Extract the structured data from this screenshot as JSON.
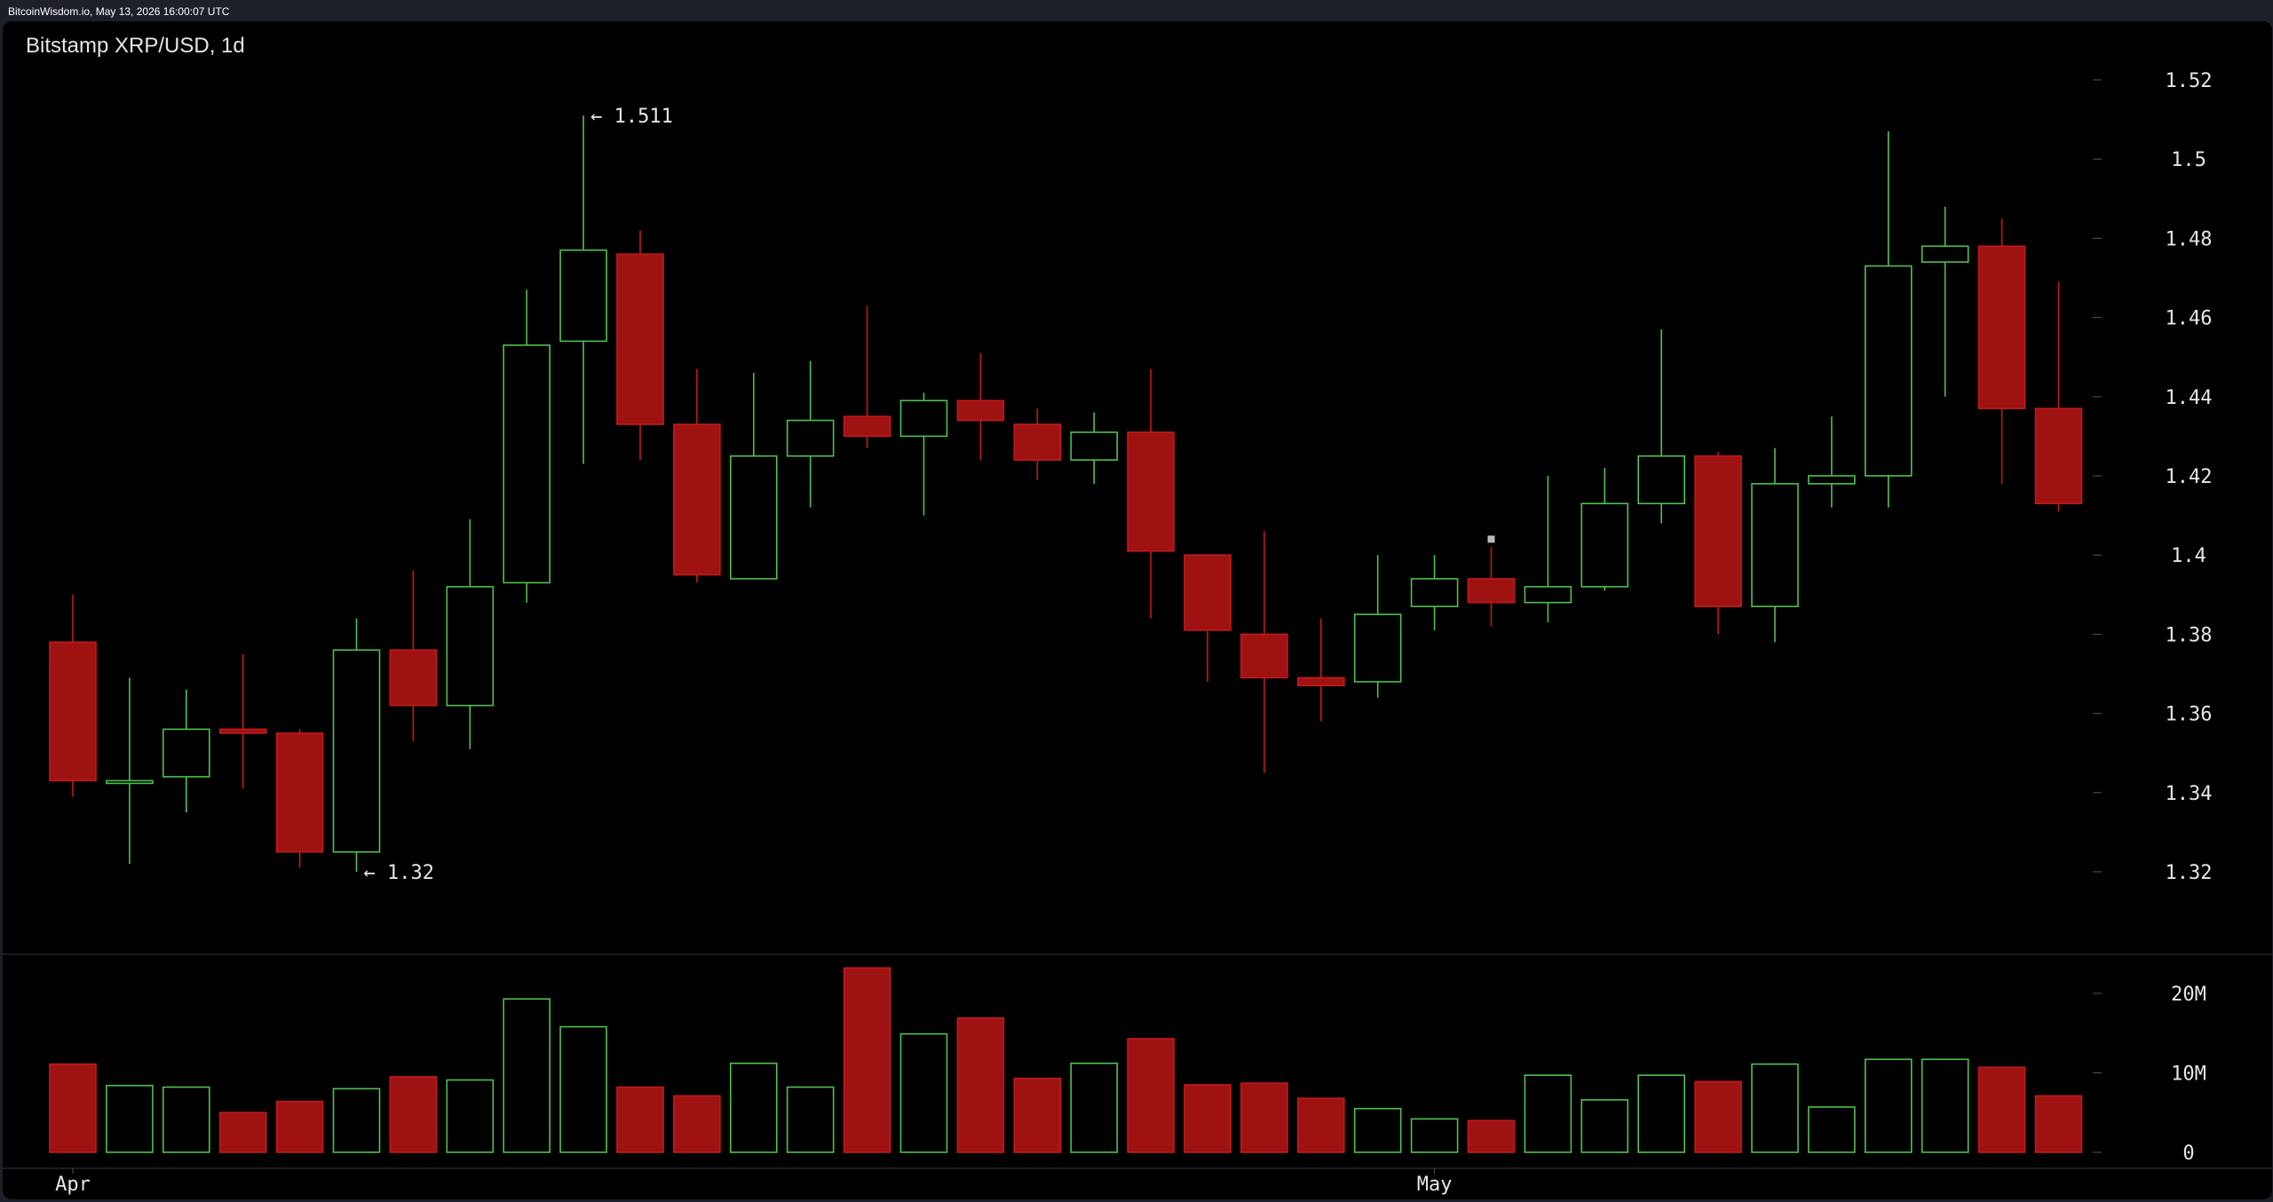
{
  "header": {
    "site_line": "BitcoinWisdom.io, May 13, 2026 16:00:07 UTC"
  },
  "chart_title": "Bitstamp XRP/USD, 1d",
  "colors": {
    "background": "#000000",
    "frame": "#1d2029",
    "up": "#4fc04f",
    "down": "#9e1212",
    "down_border": "#c21a1a",
    "text": "#e6e6e6",
    "axis_tick": "#555555",
    "separator": "#3a3a3a"
  },
  "chart_data": {
    "type": "candlestick",
    "title": "Bitstamp XRP/USD, 1d",
    "price_axis": {
      "ticks": [
        1.32,
        1.34,
        1.36,
        1.38,
        1.4,
        1.42,
        1.44,
        1.46,
        1.48,
        1.5,
        1.52
      ],
      "tick_labels": [
        "1.32",
        "1.34",
        "1.36",
        "1.38",
        "1.4",
        "1.42",
        "1.44",
        "1.46",
        "1.48",
        "1.5",
        "1.52"
      ],
      "position": "right"
    },
    "volume_axis": {
      "ticks": [
        0,
        10,
        20
      ],
      "tick_labels": [
        "0",
        "10M",
        "20M"
      ],
      "unit": "M",
      "position": "right"
    },
    "x_axis": {
      "labels": [
        {
          "text": "Apr",
          "index": 0
        },
        {
          "text": "May",
          "index": 24
        }
      ]
    },
    "annotations": [
      {
        "text": "← 1.511",
        "index": 9,
        "value": 1.511
      },
      {
        "text": "← 1.32",
        "index": 5,
        "value": 1.32
      }
    ],
    "marker": {
      "index": 25,
      "value": 1.404
    },
    "candles": [
      {
        "open": 1.378,
        "high": 1.39,
        "low": 1.339,
        "close": 1.343,
        "volume": 11.1
      },
      {
        "open": 1.343,
        "high": 1.369,
        "low": 1.322,
        "close": 1.343,
        "volume": 8.4
      },
      {
        "open": 1.344,
        "high": 1.366,
        "low": 1.335,
        "close": 1.356,
        "volume": 8.2
      },
      {
        "open": 1.356,
        "high": 1.375,
        "low": 1.341,
        "close": 1.355,
        "volume": 5.0
      },
      {
        "open": 1.355,
        "high": 1.356,
        "low": 1.321,
        "close": 1.325,
        "volume": 6.4
      },
      {
        "open": 1.325,
        "high": 1.384,
        "low": 1.32,
        "close": 1.376,
        "volume": 8.0
      },
      {
        "open": 1.376,
        "high": 1.396,
        "low": 1.353,
        "close": 1.362,
        "volume": 9.5
      },
      {
        "open": 1.362,
        "high": 1.409,
        "low": 1.351,
        "close": 1.392,
        "volume": 9.1
      },
      {
        "open": 1.393,
        "high": 1.467,
        "low": 1.388,
        "close": 1.453,
        "volume": 19.3
      },
      {
        "open": 1.454,
        "high": 1.511,
        "low": 1.423,
        "close": 1.477,
        "volume": 15.8
      },
      {
        "open": 1.476,
        "high": 1.482,
        "low": 1.424,
        "close": 1.433,
        "volume": 8.2
      },
      {
        "open": 1.433,
        "high": 1.447,
        "low": 1.393,
        "close": 1.395,
        "volume": 7.1
      },
      {
        "open": 1.394,
        "high": 1.446,
        "low": 1.394,
        "close": 1.425,
        "volume": 11.2
      },
      {
        "open": 1.425,
        "high": 1.449,
        "low": 1.412,
        "close": 1.434,
        "volume": 8.2
      },
      {
        "open": 1.435,
        "high": 1.463,
        "low": 1.427,
        "close": 1.43,
        "volume": 23.2
      },
      {
        "open": 1.43,
        "high": 1.441,
        "low": 1.41,
        "close": 1.439,
        "volume": 14.9
      },
      {
        "open": 1.439,
        "high": 1.451,
        "low": 1.424,
        "close": 1.434,
        "volume": 16.9
      },
      {
        "open": 1.433,
        "high": 1.437,
        "low": 1.419,
        "close": 1.424,
        "volume": 9.3
      },
      {
        "open": 1.424,
        "high": 1.436,
        "low": 1.418,
        "close": 1.431,
        "volume": 11.2
      },
      {
        "open": 1.431,
        "high": 1.447,
        "low": 1.384,
        "close": 1.401,
        "volume": 14.3
      },
      {
        "open": 1.4,
        "high": 1.4,
        "low": 1.368,
        "close": 1.381,
        "volume": 8.5
      },
      {
        "open": 1.38,
        "high": 1.406,
        "low": 1.345,
        "close": 1.369,
        "volume": 8.7
      },
      {
        "open": 1.369,
        "high": 1.384,
        "low": 1.358,
        "close": 1.367,
        "volume": 6.8
      },
      {
        "open": 1.368,
        "high": 1.4,
        "low": 1.364,
        "close": 1.385,
        "volume": 5.5
      },
      {
        "open": 1.387,
        "high": 1.4,
        "low": 1.381,
        "close": 1.394,
        "volume": 4.2
      },
      {
        "open": 1.394,
        "high": 1.402,
        "low": 1.382,
        "close": 1.388,
        "volume": 4.0
      },
      {
        "open": 1.388,
        "high": 1.42,
        "low": 1.383,
        "close": 1.392,
        "volume": 9.7
      },
      {
        "open": 1.392,
        "high": 1.422,
        "low": 1.391,
        "close": 1.413,
        "volume": 6.6
      },
      {
        "open": 1.413,
        "high": 1.457,
        "low": 1.408,
        "close": 1.425,
        "volume": 9.7
      },
      {
        "open": 1.425,
        "high": 1.426,
        "low": 1.38,
        "close": 1.387,
        "volume": 8.9
      },
      {
        "open": 1.387,
        "high": 1.427,
        "low": 1.378,
        "close": 1.418,
        "volume": 11.1
      },
      {
        "open": 1.418,
        "high": 1.435,
        "low": 1.412,
        "close": 1.42,
        "volume": 5.7
      },
      {
        "open": 1.42,
        "high": 1.507,
        "low": 1.412,
        "close": 1.473,
        "volume": 11.7
      },
      {
        "open": 1.474,
        "high": 1.488,
        "low": 1.44,
        "close": 1.478,
        "volume": 11.7
      },
      {
        "open": 1.478,
        "high": 1.485,
        "low": 1.418,
        "close": 1.437,
        "volume": 10.7
      },
      {
        "open": 1.437,
        "high": 1.469,
        "low": 1.411,
        "close": 1.413,
        "volume": 7.1
      }
    ]
  }
}
